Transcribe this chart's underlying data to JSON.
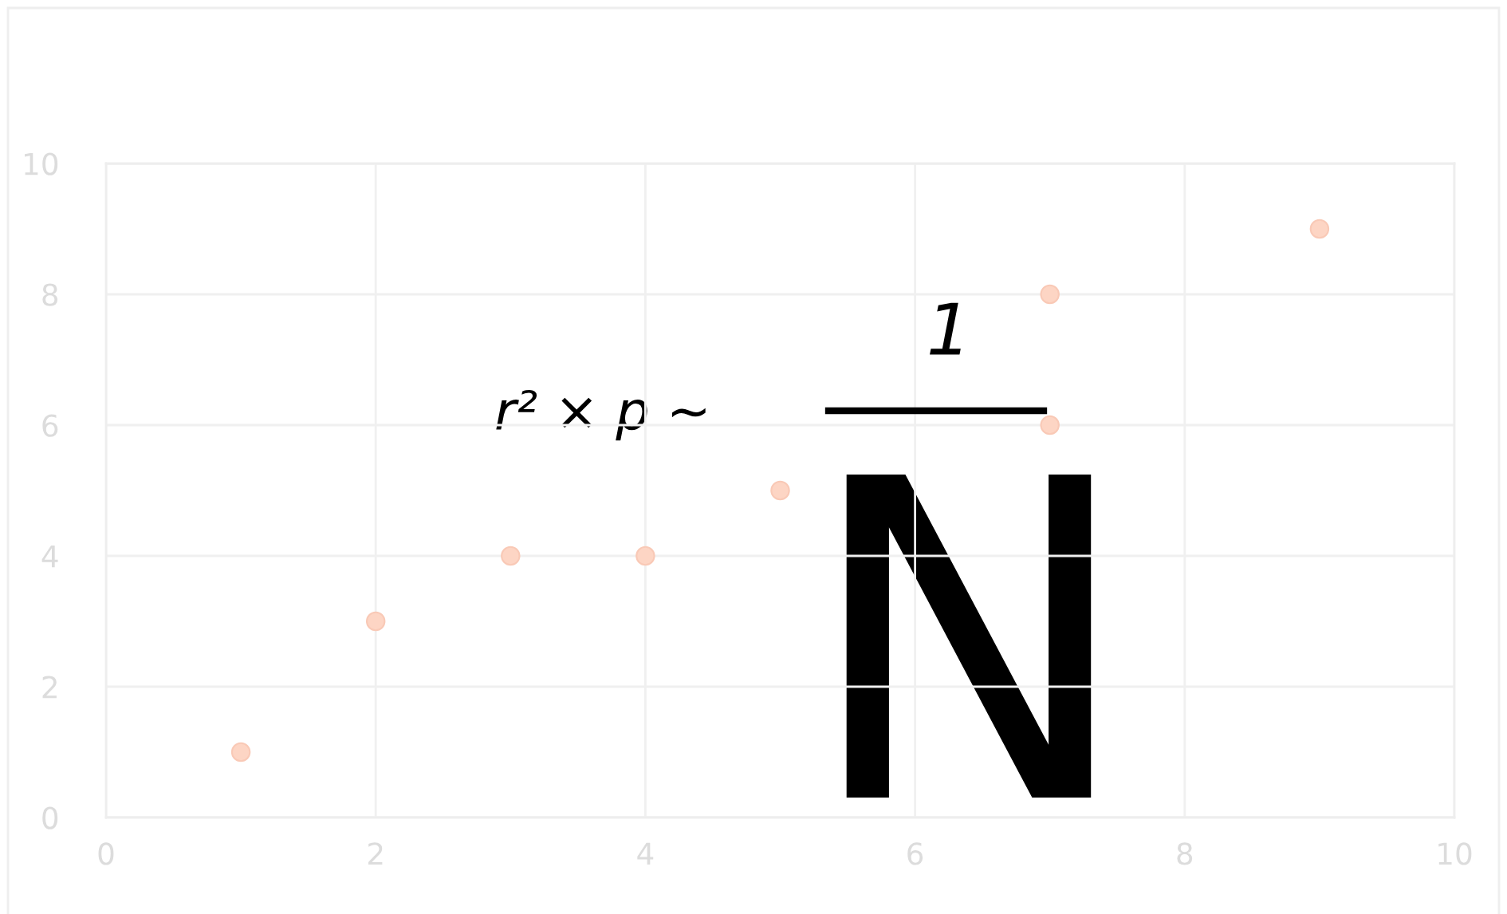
{
  "chart_data": {
    "type": "scatter",
    "x": [
      1,
      2,
      3,
      4,
      5,
      7,
      7,
      9
    ],
    "values": [
      1,
      3,
      4,
      4,
      5,
      8,
      6,
      9
    ],
    "color": "#fdd5c4",
    "marker": "circle",
    "xlim": [
      0,
      10
    ],
    "xticks": [
      0,
      2,
      4,
      6,
      8,
      10
    ],
    "ylim": [
      0,
      10
    ],
    "yticks": [
      0,
      2,
      4,
      6,
      8,
      10
    ],
    "grid": true,
    "annotations": [
      "r² × p ~",
      "1",
      "N"
    ]
  }
}
